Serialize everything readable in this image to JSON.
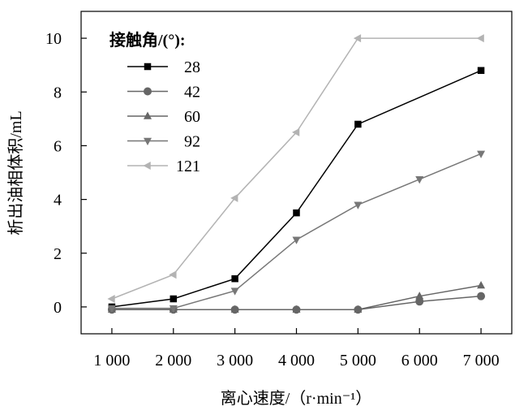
{
  "chart_data": {
    "type": "line",
    "title": "",
    "xlabel": "离心速度/（r·min⁻¹）",
    "ylabel": "析出油相体积/mL",
    "categories": [
      "1 000",
      "2 000",
      "3 000",
      "4 000",
      "5 000",
      "6 000",
      "7 000"
    ],
    "x": [
      1000,
      2000,
      3000,
      4000,
      5000,
      6000,
      7000
    ],
    "xlim": [
      500,
      7500
    ],
    "ylim": [
      -1,
      11
    ],
    "yticks": [
      0,
      2,
      4,
      6,
      8,
      10
    ],
    "yticklabels": [
      "0",
      "2",
      "4",
      "6",
      "8",
      "10"
    ],
    "grid": false,
    "legend": {
      "title": "接触角/(°):",
      "position": "top-left"
    },
    "series": [
      {
        "name": "28",
        "marker": "square",
        "color": "#000000",
        "values": [
          0,
          0.3,
          1.05,
          3.5,
          6.8,
          null,
          8.8
        ]
      },
      {
        "name": "42",
        "marker": "circle",
        "color": "#666666",
        "values": [
          -0.1,
          -0.1,
          -0.1,
          -0.1,
          -0.1,
          0.2,
          0.4
        ]
      },
      {
        "name": "60",
        "marker": "triangle-up",
        "color": "#666666",
        "values": [
          -0.1,
          -0.1,
          -0.1,
          -0.1,
          -0.1,
          0.4,
          0.8
        ]
      },
      {
        "name": "92",
        "marker": "triangle-down",
        "color": "#777777",
        "values": [
          -0.05,
          -0.05,
          0.6,
          2.5,
          3.8,
          4.75,
          5.7
        ]
      },
      {
        "name": "121",
        "marker": "triangle-left",
        "color": "#b3b3b3",
        "values": [
          0.3,
          1.2,
          4.05,
          6.5,
          10.0,
          null,
          10.0
        ]
      }
    ]
  }
}
